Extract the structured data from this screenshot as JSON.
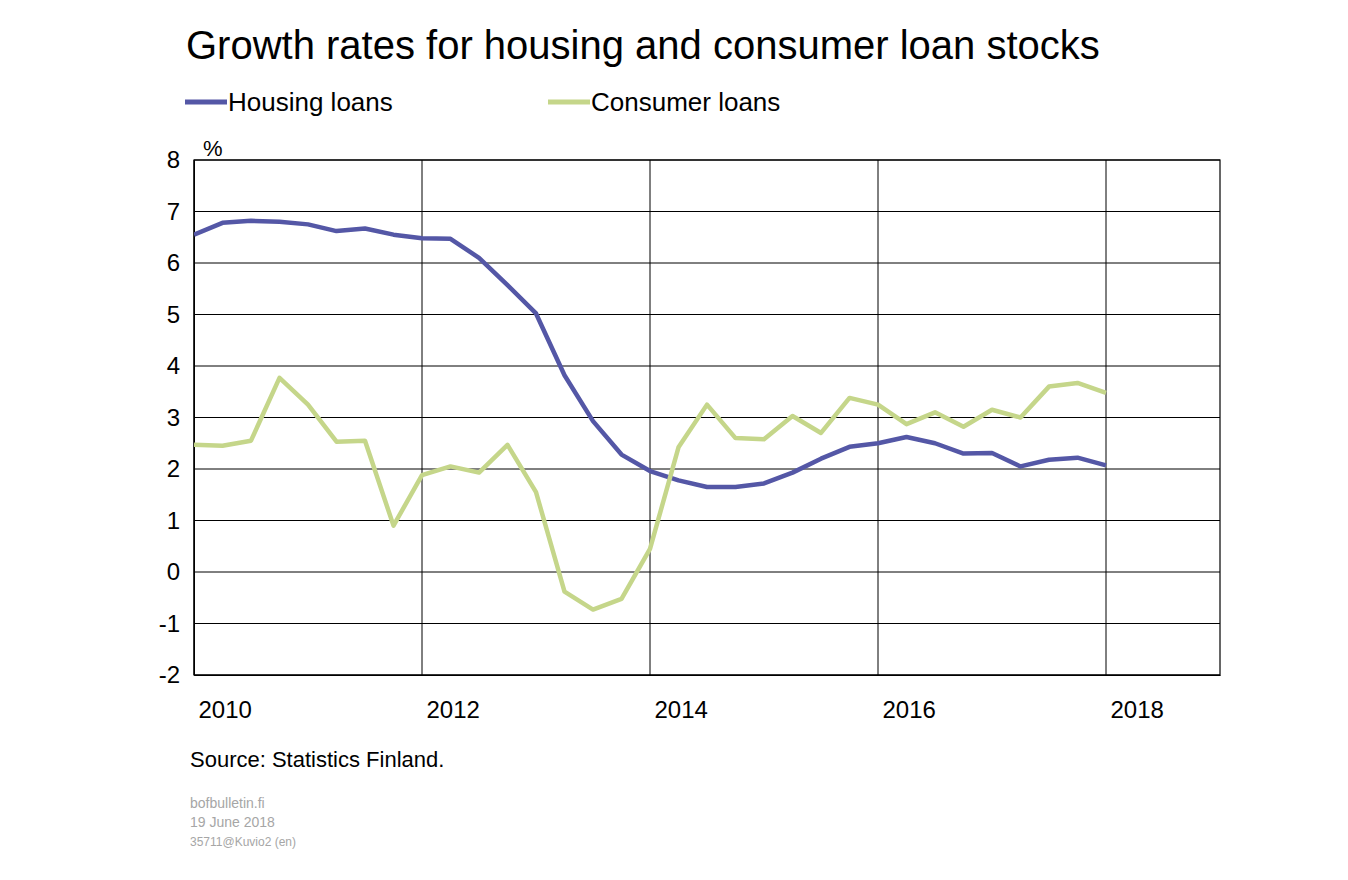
{
  "chart_data": {
    "type": "line",
    "title": "Growth rates for housing and consumer loan stocks",
    "y_label": "%",
    "annotations": [
      "Source: Statistics Finland.",
      "bofbulletin.fi",
      "19 June 2018",
      "35711@Kuvio2 (en)"
    ],
    "x": [
      2010,
      2010.25,
      2010.5,
      2010.75,
      2011,
      2011.25,
      2011.5,
      2011.75,
      2012,
      2012.25,
      2012.5,
      2012.75,
      2013,
      2013.25,
      2013.5,
      2013.75,
      2014,
      2014.25,
      2014.5,
      2014.75,
      2015,
      2015.25,
      2015.5,
      2015.75,
      2016,
      2016.25,
      2016.5,
      2016.75,
      2017,
      2017.25,
      2017.5,
      2017.75,
      2018
    ],
    "series": [
      {
        "name": "Housing loans",
        "color": "#5457a6",
        "values": [
          6.55,
          6.78,
          6.82,
          6.8,
          6.75,
          6.62,
          6.67,
          6.55,
          6.48,
          6.47,
          6.1,
          5.57,
          5.02,
          3.82,
          2.93,
          2.28,
          1.96,
          1.78,
          1.65,
          1.65,
          1.72,
          1.93,
          2.2,
          2.43,
          2.5,
          2.62,
          2.5,
          2.3,
          2.31,
          2.05,
          2.18,
          2.22,
          2.07
        ]
      },
      {
        "name": "Consumer loans",
        "color": "#c5d68a",
        "values": [
          2.47,
          2.45,
          2.55,
          3.77,
          3.25,
          2.53,
          2.55,
          0.9,
          1.88,
          2.05,
          1.93,
          2.47,
          1.55,
          -0.38,
          -0.73,
          -0.52,
          0.45,
          2.42,
          3.25,
          2.6,
          2.58,
          3.03,
          2.7,
          3.38,
          3.25,
          2.87,
          3.1,
          2.82,
          3.15,
          3.0,
          3.6,
          3.67,
          3.48
        ]
      }
    ],
    "xlim": [
      2010,
      2019
    ],
    "xticks": [
      2010,
      2012,
      2014,
      2016,
      2018
    ],
    "ylim": [
      -2,
      8
    ],
    "yticks": [
      -2,
      -1,
      0,
      1,
      2,
      3,
      4,
      5,
      6,
      7,
      8
    ],
    "grid": true,
    "legend": "top"
  }
}
